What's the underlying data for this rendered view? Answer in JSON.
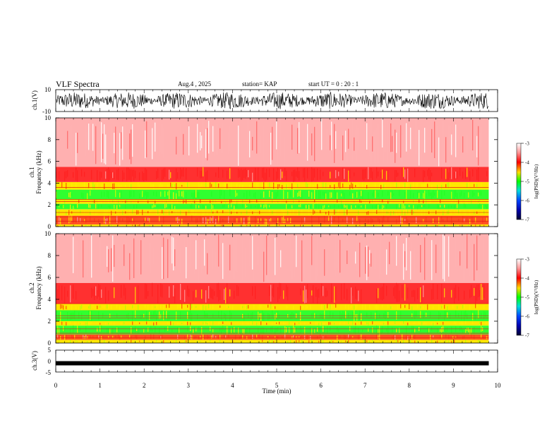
{
  "header": {
    "title": "VLF Spectra",
    "date": "Aug.4  , 2025",
    "station": "station= KAP",
    "start": "start  UT  =   0  : 20 : 1"
  },
  "chart_data": [
    {
      "type": "line",
      "name": "ch1-waveform",
      "ylabel": "ch.1(V)",
      "ylim": [
        -10,
        10
      ],
      "yticks": [
        "10",
        "-10"
      ],
      "xlim": [
        0,
        9.8
      ],
      "amplitude": [
        3,
        10
      ],
      "color": "#000000"
    },
    {
      "type": "heatmap",
      "name": "ch1-spectrogram",
      "ylabel": "ch.1\nFrequency  (kHz)",
      "ylim": [
        0,
        10
      ],
      "yticks": [
        "0",
        "2",
        "4",
        "6",
        "8",
        "10"
      ],
      "xlim": [
        0,
        9.8
      ],
      "bands_khz": [
        {
          "from": 0,
          "to": 0.2,
          "level": "yellow"
        },
        {
          "from": 0.2,
          "to": 1.0,
          "level": "red-yellow"
        },
        {
          "from": 1.0,
          "to": 1.6,
          "level": "yellow"
        },
        {
          "from": 1.6,
          "to": 2.1,
          "level": "green"
        },
        {
          "from": 2.1,
          "to": 2.5,
          "level": "yellow"
        },
        {
          "from": 2.5,
          "to": 3.4,
          "level": "green"
        },
        {
          "from": 3.4,
          "to": 4.1,
          "level": "yellow"
        },
        {
          "from": 4.1,
          "to": 5.5,
          "level": "red"
        },
        {
          "from": 5.5,
          "to": 10,
          "level": "light-red"
        }
      ],
      "colorbar": {
        "label": "log(PSD)(V²/Hz)",
        "ticks": [
          "-3",
          "-4",
          "-5",
          "-6",
          "-7"
        ],
        "range": [
          -7,
          -3
        ]
      }
    },
    {
      "type": "heatmap",
      "name": "ch2-spectrogram",
      "ylabel": "ch.2\nFrequency  (kHz)",
      "ylim": [
        0,
        10
      ],
      "yticks": [
        "0",
        "2",
        "4",
        "6",
        "8",
        "10"
      ],
      "xlim": [
        0,
        9.8
      ],
      "bands_khz": [
        {
          "from": 0,
          "to": 0.3,
          "level": "yellow"
        },
        {
          "from": 0.3,
          "to": 0.8,
          "level": "red-yellow"
        },
        {
          "from": 0.8,
          "to": 1.6,
          "level": "green"
        },
        {
          "from": 1.6,
          "to": 2.0,
          "level": "yellow"
        },
        {
          "from": 2.0,
          "to": 3.0,
          "level": "green"
        },
        {
          "from": 3.0,
          "to": 3.6,
          "level": "yellow"
        },
        {
          "from": 3.6,
          "to": 5.5,
          "level": "red"
        },
        {
          "from": 5.5,
          "to": 10,
          "level": "light-red"
        }
      ],
      "colorbar": {
        "label": "log(PSD)(V²/Hz)",
        "ticks": [
          "-3",
          "-4",
          "-5",
          "-6",
          "-7"
        ],
        "range": [
          -7,
          -3
        ]
      }
    },
    {
      "type": "line",
      "name": "ch3-waveform",
      "ylabel": "ch.3(V)",
      "ylim": [
        -5,
        5
      ],
      "yticks": [
        "5",
        "0",
        "-5"
      ],
      "xlim": [
        0,
        9.8
      ],
      "level": -1,
      "color": "#000000"
    }
  ],
  "xaxis": {
    "label": "Time  (min)",
    "range": [
      0,
      10
    ],
    "ticks": [
      "0",
      "1",
      "2",
      "3",
      "4",
      "5",
      "6",
      "7",
      "8",
      "9",
      "10"
    ]
  },
  "colors": {
    "white": "#ffffff",
    "light_red": "#ff9999",
    "red": "#ff1a1a",
    "yellow": "#ffff00",
    "green": "#00ff00",
    "blue": "#0000ff",
    "navy": "#000033"
  }
}
